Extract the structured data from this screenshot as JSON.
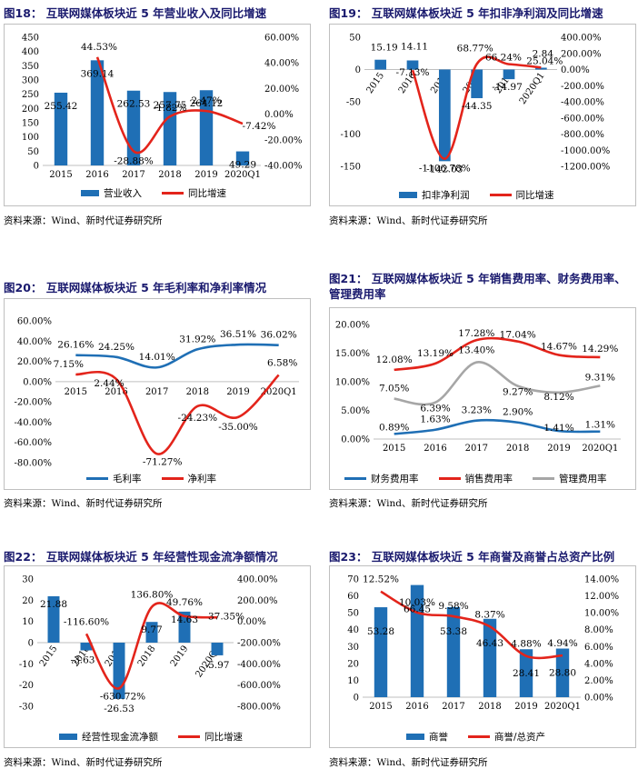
{
  "source_text": "资料来源：Wind、新时代证券研究所",
  "chart_data": [
    {
      "id": "fig18",
      "type": "bar",
      "title": "图18：  互联网媒体板块近 5 年营业收入及同比增速",
      "categories": [
        "2015",
        "2016",
        "2017",
        "2018",
        "2019",
        "2020Q1"
      ],
      "y_ticks": [
        "0",
        "50",
        "100",
        "150",
        "200",
        "250",
        "300",
        "350",
        "400",
        "450"
      ],
      "y2_ticks": [
        "-40.00%",
        "-20.00%",
        "0.00%",
        "20.00%",
        "40.00%",
        "60.00%"
      ],
      "ylim": [
        0,
        450
      ],
      "y2lim": [
        -40,
        60
      ],
      "series": [
        {
          "name": "营业收入",
          "kind": "bar",
          "axis": "left",
          "color": "#1f6fb5",
          "values": [
            255.42,
            369.14,
            262.53,
            257.75,
            264.12,
            49.29
          ],
          "labels": [
            "255.42",
            "369.14",
            "262.53",
            "257.75",
            "264.12",
            "49.29"
          ]
        },
        {
          "name": "同比增速",
          "kind": "line",
          "axis": "right",
          "color": "#e3241b",
          "values": [
            null,
            44.53,
            -28.88,
            -1.82,
            2.47,
            -7.42
          ],
          "labels": [
            "",
            "44.53%",
            "-28.88%",
            "-1.82%",
            "2.47%",
            "-7.42%"
          ]
        }
      ]
    },
    {
      "id": "fig19",
      "type": "bar",
      "title": "图19：  互联网媒体板块近 5 年扣非净利润及同比增速",
      "categories": [
        "2015",
        "2016",
        "2017",
        "2018",
        "2019",
        "2020Q1"
      ],
      "y_ticks": [
        "-150",
        "-100",
        "-50",
        "0",
        "50"
      ],
      "y2_ticks": [
        "-1200.00%",
        "-1000.00%",
        "-800.00%",
        "-600.00%",
        "-400.00%",
        "-200.00%",
        "0.00%",
        "200.00%",
        "400.00%"
      ],
      "ylim": [
        -150,
        50
      ],
      "y2lim": [
        -1200,
        400
      ],
      "series": [
        {
          "name": "扣非净利润",
          "kind": "bar",
          "axis": "left",
          "color": "#1f6fb5",
          "values": [
            15.19,
            14.11,
            -142.03,
            -44.35,
            -14.97,
            2.84
          ],
          "labels": [
            "15.19",
            "14.11",
            "-142.03",
            "-44.35",
            "-14.97",
            "2.84"
          ]
        },
        {
          "name": "同比增速",
          "kind": "line",
          "axis": "right",
          "color": "#e3241b",
          "values": [
            null,
            -7.13,
            -1106.78,
            68.77,
            66.24,
            25.04
          ],
          "labels": [
            "",
            "-7.13%",
            "-1106.78%",
            "68.77%",
            "66.24%",
            "25.04%"
          ]
        }
      ]
    },
    {
      "id": "fig20",
      "type": "line",
      "title": "图20：  互联网媒体板块近 5 年毛利率和净利率情况",
      "categories": [
        "2015",
        "2016",
        "2017",
        "2018",
        "2019",
        "2020Q1"
      ],
      "y_ticks": [
        "-80.00%",
        "-60.00%",
        "-40.00%",
        "-20.00%",
        "0.00%",
        "20.00%",
        "40.00%",
        "60.00%"
      ],
      "ylim": [
        -80,
        60
      ],
      "series": [
        {
          "name": "毛利率",
          "kind": "line",
          "axis": "left",
          "color": "#1f6fb5",
          "values": [
            26.16,
            24.25,
            14.01,
            31.92,
            36.51,
            36.02
          ],
          "labels": [
            "26.16%",
            "24.25%",
            "14.01%",
            "31.92%",
            "36.51%",
            "36.02%"
          ]
        },
        {
          "name": "净利率",
          "kind": "line",
          "axis": "left",
          "color": "#e3241b",
          "values": [
            7.15,
            2.44,
            -71.27,
            -24.23,
            -35.0,
            6.58
          ],
          "labels": [
            "7.15%",
            "2.44%",
            "-71.27%",
            "-24.23%",
            "-35.00%",
            "6.58%"
          ]
        }
      ]
    },
    {
      "id": "fig21",
      "type": "line",
      "title": "图21：  互联网媒体板块近 5 年销售费用率、财务费用率、管理费用率",
      "categories": [
        "2015",
        "2016",
        "2017",
        "2018",
        "2019",
        "2020Q1"
      ],
      "y_ticks": [
        "0.00%",
        "5.00%",
        "10.00%",
        "15.00%",
        "20.00%"
      ],
      "ylim": [
        0,
        20
      ],
      "series": [
        {
          "name": "财务费用率",
          "kind": "line",
          "axis": "left",
          "color": "#1f6fb5",
          "values": [
            0.89,
            1.63,
            3.23,
            2.9,
            1.41,
            1.31
          ],
          "labels": [
            "0.89%",
            "1.63%",
            "3.23%",
            "2.90%",
            "1.41%",
            "1.31%"
          ]
        },
        {
          "name": "销售费用率",
          "kind": "line",
          "axis": "left",
          "color": "#e3241b",
          "values": [
            12.08,
            13.19,
            17.28,
            17.04,
            14.67,
            14.29
          ],
          "labels": [
            "12.08%",
            "13.19%",
            "17.28%",
            "17.04%",
            "14.67%",
            "14.29%"
          ]
        },
        {
          "name": "管理费用率",
          "kind": "line",
          "axis": "left",
          "color": "#a6a6a6",
          "values": [
            7.05,
            6.39,
            13.4,
            9.27,
            8.12,
            9.31
          ],
          "labels": [
            "7.05%",
            "6.39%",
            "13.40%",
            "9.27%",
            "8.12%",
            "9.31%"
          ]
        }
      ]
    },
    {
      "id": "fig22",
      "type": "bar",
      "title": "图22：  互联网媒体板块近 5 年经营性现金流净额情况",
      "categories": [
        "2015",
        "2016",
        "2017",
        "2018",
        "2019",
        "2020Q1"
      ],
      "y_ticks": [
        "-30",
        "-20",
        "-10",
        "0",
        "10",
        "20",
        "30"
      ],
      "y2_ticks": [
        "-800.00%",
        "-600.00%",
        "-400.00%",
        "-200.00%",
        "0.00%",
        "200.00%",
        "400.00%"
      ],
      "ylim": [
        -30,
        30
      ],
      "y2lim": [
        -800,
        400
      ],
      "series": [
        {
          "name": "经营性现金流净额",
          "kind": "bar",
          "axis": "left",
          "color": "#1f6fb5",
          "values": [
            21.88,
            -3.63,
            -26.53,
            9.77,
            14.63,
            -5.97
          ],
          "labels": [
            "21.88",
            "-3.63",
            "-26.53",
            "9.77",
            "14.63",
            "-5.97"
          ]
        },
        {
          "name": "同比增速",
          "kind": "line",
          "axis": "right",
          "color": "#e3241b",
          "values": [
            null,
            -116.6,
            -630.72,
            136.8,
            49.76,
            37.35
          ],
          "labels": [
            "",
            "-116.60%",
            "-630.72%",
            "136.80%",
            "49.76%",
            "37.35%"
          ]
        }
      ]
    },
    {
      "id": "fig23",
      "type": "bar",
      "title": "图23：  互联网媒体板块近 5 年商誉及商誉占总资产比例",
      "categories": [
        "2015",
        "2016",
        "2017",
        "2018",
        "2019",
        "2020Q1"
      ],
      "y_ticks": [
        "0",
        "10",
        "20",
        "30",
        "40",
        "50",
        "60",
        "70"
      ],
      "y2_ticks": [
        "0.00%",
        "2.00%",
        "4.00%",
        "6.00%",
        "8.00%",
        "10.00%",
        "12.00%",
        "14.00%"
      ],
      "ylim": [
        0,
        70
      ],
      "y2lim": [
        0,
        14
      ],
      "series": [
        {
          "name": "商誉",
          "kind": "bar",
          "axis": "left",
          "color": "#1f6fb5",
          "values": [
            53.28,
            66.45,
            53.38,
            46.43,
            28.41,
            28.8
          ],
          "labels": [
            "53.28",
            "66.45",
            "53.38",
            "46.43",
            "28.41",
            "28.80"
          ]
        },
        {
          "name": "商誉/总资产",
          "kind": "line",
          "axis": "right",
          "color": "#e3241b",
          "values": [
            12.52,
            10.03,
            9.58,
            8.37,
            4.88,
            4.94
          ],
          "labels": [
            "12.52%",
            "10.03%",
            "9.58%",
            "8.37%",
            "4.88%",
            "4.94%"
          ]
        }
      ]
    }
  ]
}
